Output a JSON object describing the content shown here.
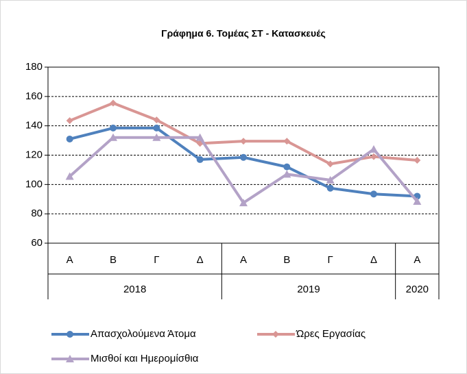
{
  "chart_data": {
    "type": "line",
    "title": "Γράφημα 6. Τομέας ΣΤ - Κατασκευές",
    "category_groups": [
      {
        "name": "2018",
        "categories": [
          "Α",
          "Β",
          "Γ",
          "Δ"
        ]
      },
      {
        "name": "2019",
        "categories": [
          "Α",
          "Β",
          "Γ",
          "Δ"
        ]
      },
      {
        "name": "2020",
        "categories": [
          "Α"
        ]
      }
    ],
    "series": [
      {
        "name": "Απασχολούμενα Άτομα",
        "color": "#4f81bd",
        "marker": "circle",
        "values": [
          131,
          138.5,
          138.5,
          117,
          118.5,
          112,
          97.5,
          93.5,
          92
        ]
      },
      {
        "name": "Ώρες Εργασίας",
        "color": "#d99694",
        "marker": "diamond",
        "values": [
          143.5,
          155.5,
          144,
          128,
          129.5,
          129.5,
          114,
          119,
          116.5
        ]
      },
      {
        "name": "Μισθοί και Ημερομίσθια",
        "color": "#b3a2c7",
        "marker": "triangle",
        "values": [
          105.5,
          132,
          132,
          132,
          87.5,
          107,
          103,
          124,
          88.5
        ]
      }
    ],
    "ylim": [
      60,
      180
    ],
    "yticks": [
      60,
      80,
      100,
      120,
      140,
      160,
      180
    ],
    "grid": true
  }
}
